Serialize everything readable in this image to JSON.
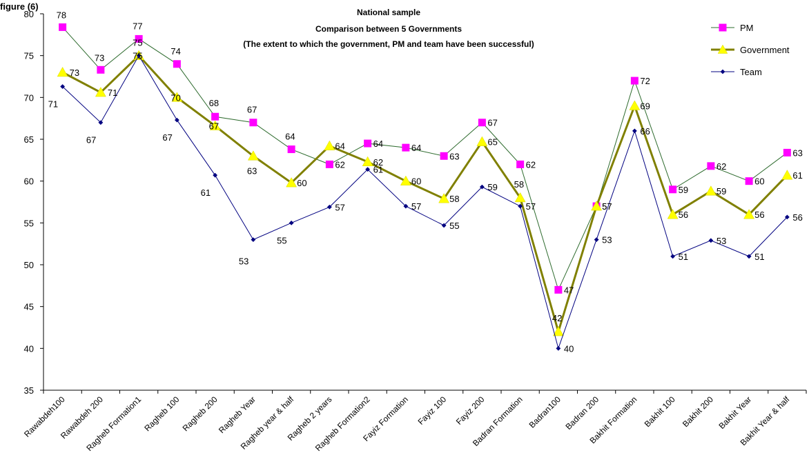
{
  "chart_data": {
    "type": "line",
    "title_lines": [
      "National sample",
      "Comparison between 5 Governments",
      "(The extent to which the government, PM and team have been successful)"
    ],
    "corner_label": "figure (6)",
    "categories": [
      "Rawabdeh100",
      "Rawabdeh 200",
      "Ragheb Formation1",
      "Ragheb 100",
      "Ragheb 200",
      "Ragheb Year",
      "Ragheb year & half",
      "Ragheb 2 years",
      "Ragheb Formation2",
      "Fayiz Formation",
      "Fayiz 100",
      "Fayiz 200",
      "Badran Formation",
      "Badran100",
      "Badran 200",
      "Bakhit Formation",
      "Bakhit 100",
      "Bakhit 200",
      "Bakhit Year",
      "Bakhit Year & half"
    ],
    "series": [
      {
        "name": "PM",
        "color": "#2E6B2E",
        "marker": "square",
        "marker_color": "#FF00FF",
        "values": [
          78.4,
          73.3,
          77,
          74,
          67.7,
          67,
          63.8,
          62,
          64.5,
          64,
          63,
          67,
          62,
          47,
          57,
          72,
          59,
          61.8,
          60,
          63.4
        ],
        "labels": [
          "78",
          "73",
          "77",
          "74",
          "68",
          "67",
          "64",
          "62",
          "64",
          "64",
          "63",
          "67",
          "62",
          "47",
          "57",
          "72",
          "59",
          "62",
          "60",
          "63"
        ]
      },
      {
        "name": "Government",
        "color": "#808000",
        "marker": "triangle",
        "marker_color": "#FFFF00",
        "values": [
          73,
          70.6,
          75,
          70,
          66.6,
          63,
          59.8,
          64.2,
          62.3,
          60,
          57.9,
          64.7,
          58,
          42,
          57,
          69,
          56,
          58.8,
          56,
          60.7
        ],
        "labels": [
          "73",
          "71",
          "75",
          "70",
          "67",
          "63",
          "60",
          "64",
          "62",
          "60",
          "58",
          "65",
          "58",
          "42",
          "57",
          "69",
          "56",
          "59",
          "56",
          "61"
        ]
      },
      {
        "name": "Team",
        "color": "#000080",
        "marker": "diamond",
        "marker_color": "#000080",
        "values": [
          71.3,
          67,
          75,
          67.3,
          60.7,
          53,
          55,
          56.9,
          61.4,
          57,
          54.7,
          59.3,
          57,
          40,
          53,
          66,
          51,
          52.9,
          51,
          55.7
        ],
        "labels": [
          "71",
          "67",
          "75",
          "67",
          "61",
          "53",
          "55",
          "57",
          "61",
          "57",
          "55",
          "59",
          "57",
          "40",
          "53",
          "66",
          "51",
          "53",
          "51",
          "56"
        ]
      }
    ],
    "ylim": [
      35,
      80
    ],
    "yticks": [
      "35",
      "40",
      "45",
      "50",
      "55",
      "60",
      "65",
      "70",
      "75",
      "80"
    ],
    "grid": false,
    "legend": "top-right"
  }
}
